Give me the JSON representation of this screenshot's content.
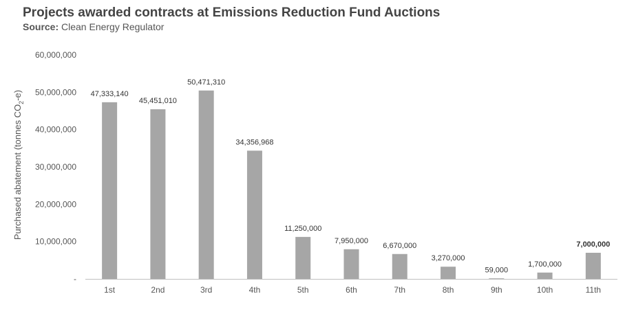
{
  "header": {
    "title": "Projects awarded contracts at Emissions Reduction Fund Auctions",
    "source_label": "Source:",
    "source_text": "Clean Energy Regulator"
  },
  "chart_data": {
    "type": "bar",
    "title": "Projects awarded contracts at Emissions Reduction Fund Auctions",
    "subtitle": "Source: Clean Energy Regulator",
    "xlabel": "",
    "ylabel": "Purchased abatement (tonnes CO2-e)",
    "ylabel_parts": [
      "Purchased abatement (tonnes CO",
      "2",
      "-e)"
    ],
    "ylim": [
      0,
      60000000
    ],
    "yticks": [
      0,
      10000000,
      20000000,
      30000000,
      40000000,
      50000000,
      60000000
    ],
    "ytick_labels": [
      "-",
      "10,000,000",
      "20,000,000",
      "30,000,000",
      "40,000,000",
      "50,000,000",
      "60,000,000"
    ],
    "grid": false,
    "bar_color": "#a6a6a6",
    "categories": [
      "1st",
      "2nd",
      "3rd",
      "4th",
      "5th",
      "6th",
      "7th",
      "8th",
      "9th",
      "10th",
      "11th"
    ],
    "values": [
      47333140,
      45451010,
      50471310,
      34356968,
      11250000,
      7950000,
      6670000,
      3270000,
      59000,
      1700000,
      7000000
    ],
    "data_labels": [
      "47,333,140",
      "45,451,010",
      "50,471,310",
      "34,356,968",
      "11,250,000",
      "7,950,000",
      "6,670,000",
      "3,270,000",
      "59,000",
      "1,700,000",
      "7,000,000"
    ],
    "bold_labels": [
      "7,000,000"
    ]
  }
}
